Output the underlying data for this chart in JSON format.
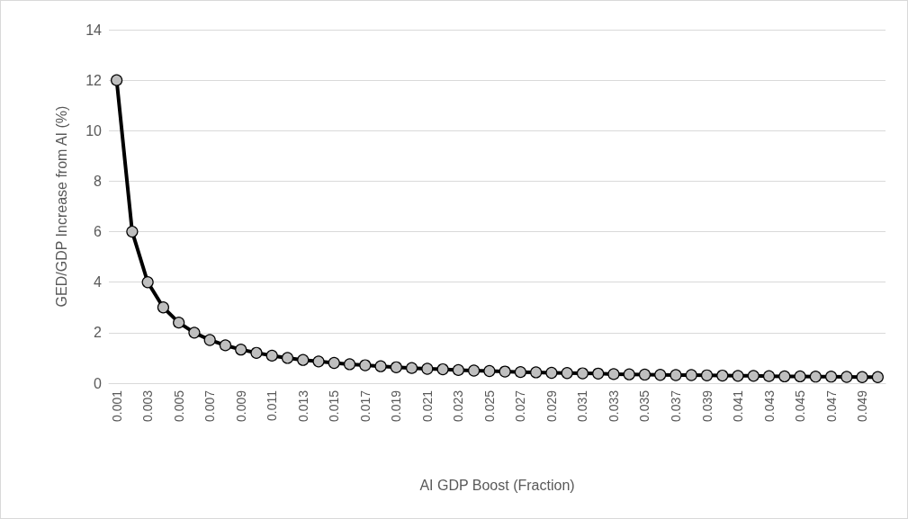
{
  "chart_data": {
    "type": "line",
    "xlabel": "AI GDP Boost (Fraction)",
    "ylabel": "GED/GDP Increase from AI (%)",
    "categories": [
      "0.001",
      null,
      "0.003",
      null,
      "0.005",
      null,
      "0.007",
      null,
      "0.009",
      null,
      "0.011",
      null,
      "0.013",
      null,
      "0.015",
      null,
      "0.017",
      null,
      "0.019",
      null,
      "0.021",
      null,
      "0.023",
      null,
      "0.025",
      null,
      "0.027",
      null,
      "0.029",
      null,
      "0.031",
      null,
      "0.033",
      null,
      "0.035",
      null,
      "0.037",
      null,
      "0.039",
      null,
      "0.041",
      null,
      "0.043",
      null,
      "0.045",
      null,
      "0.047",
      null,
      "0.049",
      null
    ],
    "series": [
      {
        "color": "#000000",
        "values": [
          12,
          6,
          4,
          3,
          2.4,
          2,
          1.71,
          1.5,
          1.33,
          1.2,
          1.09,
          1,
          0.92,
          0.86,
          0.8,
          0.75,
          0.71,
          0.67,
          0.63,
          0.6,
          0.57,
          0.55,
          0.52,
          0.5,
          0.48,
          0.46,
          0.44,
          0.43,
          0.41,
          0.4,
          0.39,
          0.38,
          0.36,
          0.35,
          0.34,
          0.33,
          0.32,
          0.32,
          0.31,
          0.3,
          0.29,
          0.29,
          0.28,
          0.27,
          0.27,
          0.26,
          0.26,
          0.25,
          0.24,
          0.24
        ]
      }
    ],
    "ylim": [
      0,
      14
    ],
    "yticks": [
      0,
      2,
      4,
      6,
      8,
      10,
      12,
      14
    ],
    "grid": "y",
    "marker": "circle",
    "line_style": "solid"
  }
}
